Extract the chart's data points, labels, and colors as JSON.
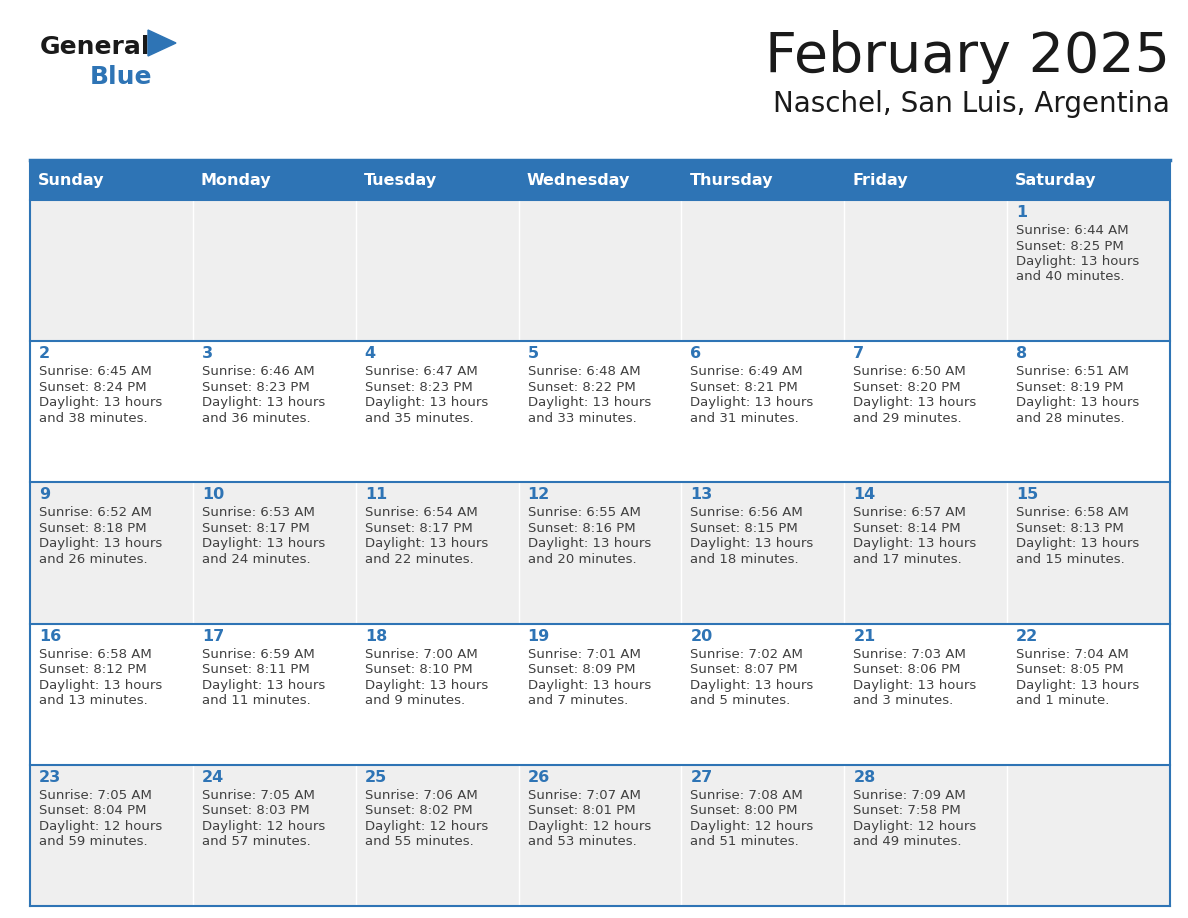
{
  "title": "February 2025",
  "subtitle": "Naschel, San Luis, Argentina",
  "header_bg": "#2E74B5",
  "header_text_color": "#FFFFFF",
  "day_names": [
    "Sunday",
    "Monday",
    "Tuesday",
    "Wednesday",
    "Thursday",
    "Friday",
    "Saturday"
  ],
  "cell_bg_white": "#FFFFFF",
  "cell_bg_gray": "#EFEFEF",
  "cell_border_color": "#2E74B5",
  "day_num_color": "#2E74B5",
  "info_text_color": "#404040",
  "title_color": "#1a1a1a",
  "subtitle_color": "#1a1a1a",
  "logo_general_color": "#1a1a1a",
  "logo_blue_color": "#2E74B5",
  "calendar": [
    [
      null,
      null,
      null,
      null,
      null,
      null,
      1
    ],
    [
      2,
      3,
      4,
      5,
      6,
      7,
      8
    ],
    [
      9,
      10,
      11,
      12,
      13,
      14,
      15
    ],
    [
      16,
      17,
      18,
      19,
      20,
      21,
      22
    ],
    [
      23,
      24,
      25,
      26,
      27,
      28,
      null
    ]
  ],
  "row_bg": [
    "gray",
    "white",
    "gray",
    "white",
    "gray"
  ],
  "day_data": {
    "1": [
      "Sunrise: 6:44 AM",
      "Sunset: 8:25 PM",
      "Daylight: 13 hours",
      "and 40 minutes."
    ],
    "2": [
      "Sunrise: 6:45 AM",
      "Sunset: 8:24 PM",
      "Daylight: 13 hours",
      "and 38 minutes."
    ],
    "3": [
      "Sunrise: 6:46 AM",
      "Sunset: 8:23 PM",
      "Daylight: 13 hours",
      "and 36 minutes."
    ],
    "4": [
      "Sunrise: 6:47 AM",
      "Sunset: 8:23 PM",
      "Daylight: 13 hours",
      "and 35 minutes."
    ],
    "5": [
      "Sunrise: 6:48 AM",
      "Sunset: 8:22 PM",
      "Daylight: 13 hours",
      "and 33 minutes."
    ],
    "6": [
      "Sunrise: 6:49 AM",
      "Sunset: 8:21 PM",
      "Daylight: 13 hours",
      "and 31 minutes."
    ],
    "7": [
      "Sunrise: 6:50 AM",
      "Sunset: 8:20 PM",
      "Daylight: 13 hours",
      "and 29 minutes."
    ],
    "8": [
      "Sunrise: 6:51 AM",
      "Sunset: 8:19 PM",
      "Daylight: 13 hours",
      "and 28 minutes."
    ],
    "9": [
      "Sunrise: 6:52 AM",
      "Sunset: 8:18 PM",
      "Daylight: 13 hours",
      "and 26 minutes."
    ],
    "10": [
      "Sunrise: 6:53 AM",
      "Sunset: 8:17 PM",
      "Daylight: 13 hours",
      "and 24 minutes."
    ],
    "11": [
      "Sunrise: 6:54 AM",
      "Sunset: 8:17 PM",
      "Daylight: 13 hours",
      "and 22 minutes."
    ],
    "12": [
      "Sunrise: 6:55 AM",
      "Sunset: 8:16 PM",
      "Daylight: 13 hours",
      "and 20 minutes."
    ],
    "13": [
      "Sunrise: 6:56 AM",
      "Sunset: 8:15 PM",
      "Daylight: 13 hours",
      "and 18 minutes."
    ],
    "14": [
      "Sunrise: 6:57 AM",
      "Sunset: 8:14 PM",
      "Daylight: 13 hours",
      "and 17 minutes."
    ],
    "15": [
      "Sunrise: 6:58 AM",
      "Sunset: 8:13 PM",
      "Daylight: 13 hours",
      "and 15 minutes."
    ],
    "16": [
      "Sunrise: 6:58 AM",
      "Sunset: 8:12 PM",
      "Daylight: 13 hours",
      "and 13 minutes."
    ],
    "17": [
      "Sunrise: 6:59 AM",
      "Sunset: 8:11 PM",
      "Daylight: 13 hours",
      "and 11 minutes."
    ],
    "18": [
      "Sunrise: 7:00 AM",
      "Sunset: 8:10 PM",
      "Daylight: 13 hours",
      "and 9 minutes."
    ],
    "19": [
      "Sunrise: 7:01 AM",
      "Sunset: 8:09 PM",
      "Daylight: 13 hours",
      "and 7 minutes."
    ],
    "20": [
      "Sunrise: 7:02 AM",
      "Sunset: 8:07 PM",
      "Daylight: 13 hours",
      "and 5 minutes."
    ],
    "21": [
      "Sunrise: 7:03 AM",
      "Sunset: 8:06 PM",
      "Daylight: 13 hours",
      "and 3 minutes."
    ],
    "22": [
      "Sunrise: 7:04 AM",
      "Sunset: 8:05 PM",
      "Daylight: 13 hours",
      "and 1 minute."
    ],
    "23": [
      "Sunrise: 7:05 AM",
      "Sunset: 8:04 PM",
      "Daylight: 12 hours",
      "and 59 minutes."
    ],
    "24": [
      "Sunrise: 7:05 AM",
      "Sunset: 8:03 PM",
      "Daylight: 12 hours",
      "and 57 minutes."
    ],
    "25": [
      "Sunrise: 7:06 AM",
      "Sunset: 8:02 PM",
      "Daylight: 12 hours",
      "and 55 minutes."
    ],
    "26": [
      "Sunrise: 7:07 AM",
      "Sunset: 8:01 PM",
      "Daylight: 12 hours",
      "and 53 minutes."
    ],
    "27": [
      "Sunrise: 7:08 AM",
      "Sunset: 8:00 PM",
      "Daylight: 12 hours",
      "and 51 minutes."
    ],
    "28": [
      "Sunrise: 7:09 AM",
      "Sunset: 7:58 PM",
      "Daylight: 12 hours",
      "and 49 minutes."
    ]
  }
}
